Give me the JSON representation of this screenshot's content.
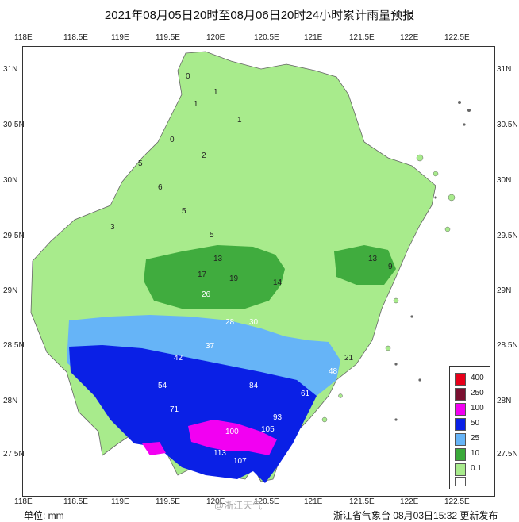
{
  "title": "2021年08月05日20时至08月06日20时24小时累计雨量预报",
  "top_lon_ticks": [
    "118E",
    "118.5E",
    "119E",
    "119.5E",
    "120E",
    "120.5E",
    "121E",
    "121.5E",
    "122E",
    "122.5E"
  ],
  "bottom_lon_ticks": [
    "118E",
    "118.5E",
    "119E",
    "119.5E",
    "120E",
    "120.5E",
    "121E",
    "121.5E",
    "122E",
    "122.5E"
  ],
  "left_lat_ticks": [
    "31N",
    "30.5N",
    "30N",
    "29.5N",
    "29N",
    "28.5N",
    "28N",
    "27.5N"
  ],
  "right_lat_ticks": [
    "31N",
    "30.5N",
    "30N",
    "29.5N",
    "29N",
    "28.5N",
    "28N",
    "27.5N"
  ],
  "legend": {
    "items": [
      {
        "label": "400",
        "color": "#e8001a"
      },
      {
        "label": "250",
        "color": "#7a1030"
      },
      {
        "label": "100",
        "color": "#f200f2"
      },
      {
        "label": "50",
        "color": "#0a20e6"
      },
      {
        "label": "25",
        "color": "#66b4f7"
      },
      {
        "label": "10",
        "color": "#3aa93a"
      },
      {
        "label": "0.1",
        "color": "#a8eb8c"
      }
    ],
    "none_color": "#ffffff"
  },
  "footer": {
    "unit": "单位: mm",
    "issuer": "浙江省气象台 08月03日15:32 更新发布",
    "watermark": "@浙江天气"
  },
  "grid_values": [
    {
      "t": "0"
    },
    {
      "t": "1"
    },
    {
      "t": "0"
    },
    {
      "t": "1"
    },
    {
      "t": "1"
    },
    {
      "t": "2"
    },
    {
      "t": "5"
    },
    {
      "t": "6"
    },
    {
      "t": "5"
    },
    {
      "t": "5"
    },
    {
      "t": "3"
    },
    {
      "t": "13"
    },
    {
      "t": "17"
    },
    {
      "t": "19"
    },
    {
      "t": "14"
    },
    {
      "t": "26"
    },
    {
      "t": "28"
    },
    {
      "t": "30"
    },
    {
      "t": "37"
    },
    {
      "t": "42"
    },
    {
      "t": "54"
    },
    {
      "t": "71"
    },
    {
      "t": "100"
    },
    {
      "t": "113"
    },
    {
      "t": "107"
    },
    {
      "t": "105"
    },
    {
      "t": "93"
    },
    {
      "t": "84"
    },
    {
      "t": "61"
    },
    {
      "t": "48"
    },
    {
      "t": "21"
    },
    {
      "t": "13"
    },
    {
      "t": "9"
    }
  ]
}
